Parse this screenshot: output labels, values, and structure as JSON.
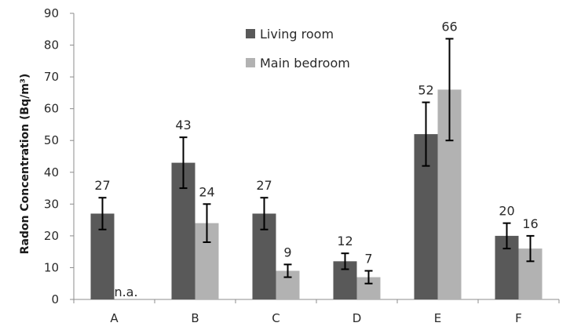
{
  "chart_data": {
    "type": "bar",
    "title": "",
    "xlabel": "",
    "ylabel": "Radon Concentration (Bq/m³)",
    "ylim": [
      0,
      90
    ],
    "yticks": [
      0,
      10,
      20,
      30,
      40,
      50,
      60,
      70,
      80,
      90
    ],
    "categories": [
      "A",
      "B",
      "C",
      "D",
      "E",
      "F"
    ],
    "legend_position": "top-center",
    "grid": false,
    "series": [
      {
        "name": "Living room",
        "color": "#595959",
        "values": [
          27,
          43,
          27,
          12,
          52,
          20
        ],
        "labels": [
          "27",
          "43",
          "27",
          "12",
          "52",
          "20"
        ],
        "error": [
          [
            22,
            32
          ],
          [
            35,
            51
          ],
          [
            22,
            32
          ],
          [
            9.5,
            14.5
          ],
          [
            42,
            62
          ],
          [
            16,
            24
          ]
        ]
      },
      {
        "name": "Main bedroom",
        "color": "#b2b2b2",
        "values": [
          null,
          24,
          9,
          7,
          66,
          16
        ],
        "labels": [
          "n.a.",
          "24",
          "9",
          "7",
          "66",
          "16"
        ],
        "error": [
          null,
          [
            18,
            30
          ],
          [
            7,
            11
          ],
          [
            5,
            9
          ],
          [
            50,
            82
          ],
          [
            12,
            20
          ]
        ]
      }
    ]
  }
}
